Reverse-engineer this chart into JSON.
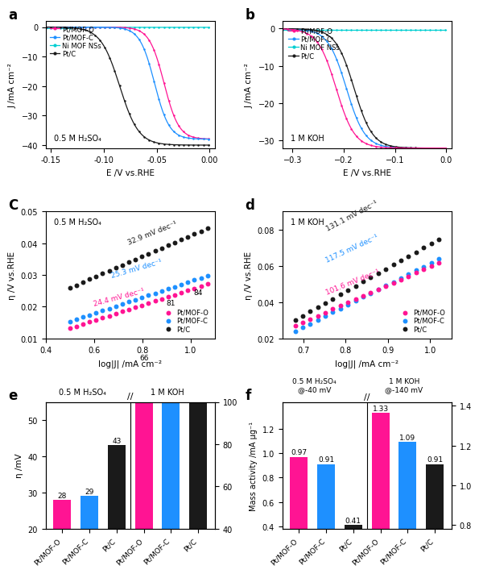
{
  "panel_a": {
    "annotation": "0.5 M H₂SO₄",
    "xlabel": "E /V vs.RHE",
    "ylabel": "J /mA cm⁻²",
    "xlim": [
      -0.155,
      0.005
    ],
    "ylim": [
      -41,
      2
    ],
    "xticks": [
      -0.15,
      -0.1,
      -0.05,
      0.0
    ],
    "yticks": [
      0,
      -10,
      -20,
      -30,
      -40
    ]
  },
  "panel_b": {
    "annotation": "1 M KOH",
    "xlabel": "E /V vs.RHE",
    "ylabel": "J /mA cm⁻²",
    "xlim": [
      -0.32,
      0.01
    ],
    "ylim": [
      -32,
      2
    ],
    "xticks": [
      -0.3,
      -0.2,
      -0.1,
      0.0
    ],
    "yticks": [
      0,
      -10,
      -20,
      -30
    ]
  },
  "panel_c": {
    "annotation": "0.5 M H₂SO₄",
    "xlabel": "log|J| /mA cm⁻²",
    "ylabel": "η /V vs.RHE",
    "xlim": [
      0.4,
      1.1
    ],
    "ylim": [
      0.01,
      0.05
    ],
    "xticks": [
      0.4,
      0.6,
      0.8,
      1.0
    ],
    "yticks": [
      0.01,
      0.02,
      0.03,
      0.04,
      0.05
    ],
    "tafel_labels": [
      "32.9 mV dec⁻¹",
      "25.3 mV dec⁻¹",
      "24.4 mV dec⁻¹"
    ],
    "tafel_slopes": [
      32.9,
      25.3,
      24.4
    ],
    "tafel_intercepts": [
      0.0095,
      0.0027,
      0.001
    ],
    "series_labels": [
      "Pt/MOF-O",
      "Pt/MOF-C",
      "Pt/C"
    ]
  },
  "panel_d": {
    "annotation": "1 M KOH",
    "xlabel": "log|J| /mA cm⁻²",
    "ylabel": "η /V vs.RHE",
    "xlim": [
      0.65,
      1.05
    ],
    "ylim": [
      0.02,
      0.09
    ],
    "xticks": [
      0.7,
      0.8,
      0.9,
      1.0
    ],
    "yticks": [
      0.02,
      0.04,
      0.06,
      0.08
    ],
    "tafel_labels": [
      "131.1 mV dec⁻¹",
      "117.5 mV dec⁻¹",
      "101.6 mV dec⁻¹"
    ],
    "tafel_slopes": [
      131.1,
      117.5,
      101.6
    ],
    "tafel_intercepts": [
      -0.059,
      -0.056,
      -0.042
    ],
    "series_labels": [
      "Pt/MOF-O",
      "Pt/MOF-C",
      "Pt/C"
    ]
  },
  "panel_e": {
    "annotation_left": "0.5 M H₂SO₄",
    "annotation_right": "1 M KOH",
    "ylabel_left": "η /mV",
    "categories": [
      "Pt/MOF-O",
      "Pt/MOF-C",
      "Pt/C",
      "Pt/MOF-O",
      "Pt/MOF-C",
      "Pt/C"
    ],
    "values": [
      28,
      29,
      43,
      66,
      81,
      84
    ],
    "bar_colors": [
      "#FF1493",
      "#1E90FF",
      "#1A1A1A",
      "#FF1493",
      "#1E90FF",
      "#1A1A1A"
    ],
    "ylim_left": [
      20,
      55
    ],
    "ylim_right": [
      40,
      100
    ],
    "yticks_left": [
      20,
      30,
      40,
      50
    ],
    "yticks_right": [
      40,
      60,
      80,
      100
    ]
  },
  "panel_f": {
    "annotation_left": "0.5 M H₂SO₄\n@-40 mV",
    "annotation_right": "1 M KOH\n@-140 mV",
    "ylabel_left": "Mass activity /mA μg⁻¹",
    "categories": [
      "Pt/MOF-O",
      "Pt/MOF-C",
      "Pt/C",
      "Pt/MOF-O",
      "Pt/MOF-C",
      "Pt/C"
    ],
    "values": [
      0.97,
      0.91,
      0.41,
      1.33,
      1.09,
      0.91
    ],
    "bar_colors": [
      "#FF1493",
      "#1E90FF",
      "#1A1A1A",
      "#FF1493",
      "#1E90FF",
      "#1A1A1A"
    ],
    "ylim_left": [
      0.38,
      1.42
    ],
    "ylim_right": [
      0.78,
      1.42
    ],
    "yticks_left": [
      0.4,
      0.6,
      0.8,
      1.0,
      1.2
    ],
    "yticks_right": [
      0.8,
      1.0,
      1.2,
      1.4
    ]
  },
  "colors": {
    "pink": "#FF1493",
    "blue": "#1E90FF",
    "cyan": "#00CED1",
    "black": "#1A1A1A"
  },
  "legend_labels": [
    "Pt/MOF-O",
    "Pt/MOF-C",
    "Ni MOF NSs",
    "Pt/C"
  ]
}
